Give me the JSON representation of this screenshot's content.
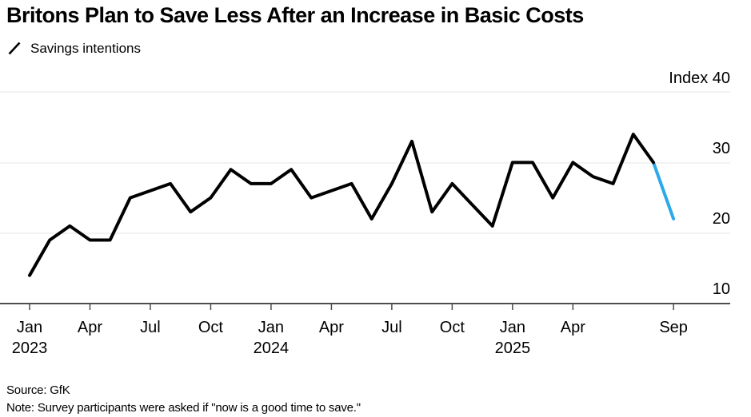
{
  "header": {
    "title": "Britons Plan to Save Less After an Increase in Basic Costs",
    "legend_label": "Savings intentions"
  },
  "chart_data": {
    "type": "line",
    "title": "Britons Plan to Save Less After an Increase in Basic Costs",
    "series": [
      {
        "name": "Savings intentions",
        "x": [
          "2023-01",
          "2023-02",
          "2023-03",
          "2023-04",
          "2023-05",
          "2023-06",
          "2023-07",
          "2023-08",
          "2023-09",
          "2023-10",
          "2023-11",
          "2023-12",
          "2024-01",
          "2024-02",
          "2024-03",
          "2024-04",
          "2024-05",
          "2024-06",
          "2024-07",
          "2024-08",
          "2024-09",
          "2024-10",
          "2024-11",
          "2024-12",
          "2025-01",
          "2025-02",
          "2025-03",
          "2025-04",
          "2025-05",
          "2025-06",
          "2025-07",
          "2025-08",
          "2025-09"
        ],
        "values": [
          14,
          19,
          21,
          19,
          19,
          25,
          26,
          27,
          23,
          25,
          29,
          27,
          27,
          29,
          25,
          26,
          27,
          22,
          27,
          33,
          23,
          27,
          24,
          21,
          30,
          30,
          25,
          30,
          28,
          27,
          34,
          30,
          22
        ]
      }
    ],
    "highlight_last_segment": true,
    "ylim": [
      10,
      40
    ],
    "grid": "horizontal",
    "legend_position": "top-left",
    "axis": {
      "index_label": "Index 40",
      "ytick_labels": [
        "30",
        "20",
        "10"
      ],
      "ytick_values": [
        30,
        20,
        10
      ],
      "x_ticks": [
        {
          "label": "Jan",
          "year": "2023",
          "month_index": 0
        },
        {
          "label": "Apr",
          "month_index": 3
        },
        {
          "label": "Jul",
          "month_index": 6
        },
        {
          "label": "Oct",
          "month_index": 9
        },
        {
          "label": "Jan",
          "year": "2024",
          "month_index": 12
        },
        {
          "label": "Apr",
          "month_index": 15
        },
        {
          "label": "Jul",
          "month_index": 18
        },
        {
          "label": "Oct",
          "month_index": 21
        },
        {
          "label": "Jan",
          "year": "2025",
          "month_index": 24
        },
        {
          "label": "Apr",
          "month_index": 27
        },
        {
          "label": "Sep",
          "month_index": 32
        }
      ]
    },
    "colors": {
      "line": "#000000",
      "highlight": "#2BA9E8",
      "gridline": "#e4e4e4",
      "axis": "#4d4d4d"
    }
  },
  "footer": {
    "source": "Source: GfK",
    "note": "Note: Survey participants were asked if \"now is a good time to save.\""
  }
}
